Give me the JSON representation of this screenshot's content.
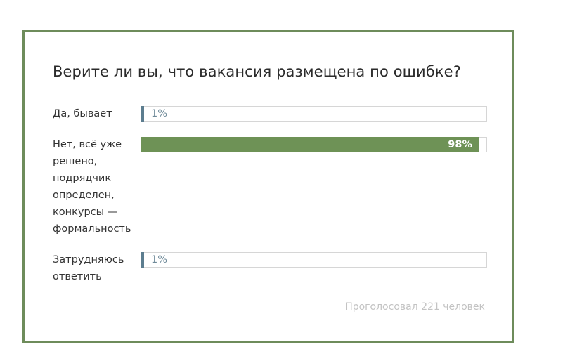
{
  "poll": {
    "question": "Верите ли вы, что вакансия размещена по ошибке?",
    "options": [
      {
        "label": "Да, бывает",
        "percent_label": "1%",
        "percent": 1,
        "color": "#5c7d8f"
      },
      {
        "label": "Нет, всё уже решено, подрядчик определен, конкурсы — формальность",
        "percent_label": "98%",
        "percent": 98,
        "color": "#6e9256"
      },
      {
        "label": "Затрудняюсь ответить",
        "percent_label": "1%",
        "percent": 1,
        "color": "#5c7d8f"
      }
    ],
    "total_votes": "Проголосовал 221 человек"
  },
  "colors": {
    "border": "#6e8c5b",
    "winner": "#6e9256",
    "minor": "#5c7d8f"
  }
}
